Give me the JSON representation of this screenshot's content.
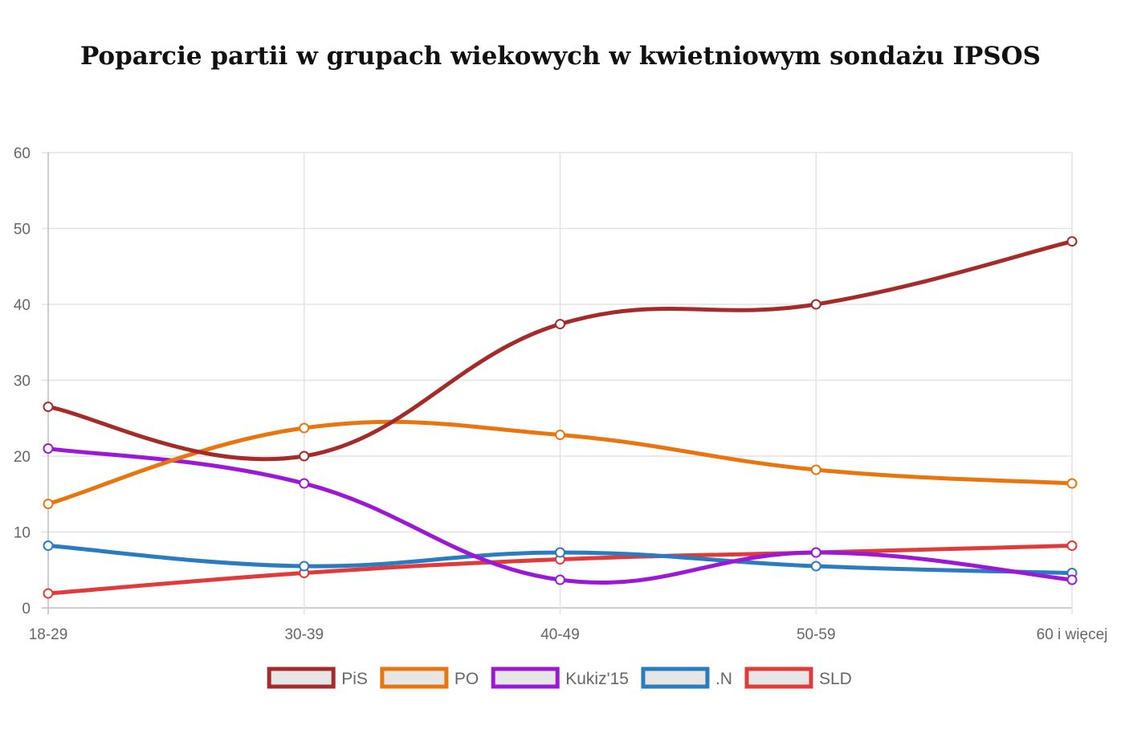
{
  "chart_data": {
    "type": "line",
    "title": "Poparcie partii w grupach wiekowych w kwietniowym sondażu IPSOS",
    "categories": [
      "18-29",
      "30-39",
      "40-49",
      "50-59",
      "60 i więcej"
    ],
    "ylim": [
      0,
      60
    ],
    "yticks": [
      0,
      10,
      20,
      30,
      40,
      50,
      60
    ],
    "grid": true,
    "legend": "bottom",
    "curve": "smooth",
    "series": [
      {
        "name": "PiS",
        "color": "#a52a2a",
        "values": [
          26.5,
          20,
          37.4,
          40,
          48.3
        ]
      },
      {
        "name": "PO",
        "color": "#e8750e",
        "values": [
          13.7,
          23.7,
          22.8,
          18.2,
          16.4
        ]
      },
      {
        "name": "Kukiz'15",
        "color": "#9b19d6",
        "values": [
          21,
          16.4,
          3.7,
          7.3,
          3.7
        ]
      },
      {
        "name": ".N",
        "color": "#2a7bc0",
        "values": [
          8.2,
          5.5,
          7.3,
          5.5,
          4.6
        ]
      },
      {
        "name": "SLD",
        "color": "#e03a3a",
        "values": [
          1.9,
          4.6,
          6.4,
          7.3,
          8.2
        ]
      }
    ]
  }
}
